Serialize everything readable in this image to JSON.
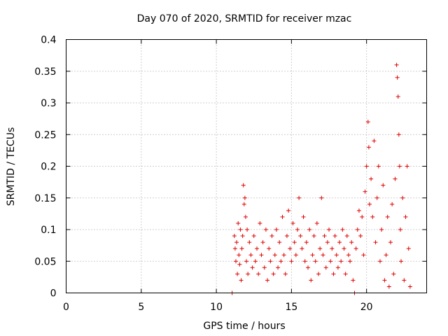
{
  "colors": {
    "series": "#e00000",
    "grid": "#a0a0a0",
    "frame": "#000000"
  },
  "chart_data": {
    "type": "scatter",
    "title": "Day 070 of 2020, SRMTID for receiver mzac",
    "xlabel": "GPS time / hours",
    "ylabel": "SRMTID / TECUs",
    "xlim": [
      0,
      24
    ],
    "ylim": [
      0,
      0.4
    ],
    "grid": true,
    "legend": "none",
    "x_ticks": [
      0,
      5,
      10,
      15,
      20
    ],
    "x_tick_labels": [
      "0",
      "5",
      "10",
      "15",
      "20"
    ],
    "y_ticks": [
      0,
      0.05,
      0.1,
      0.15,
      0.2,
      0.25,
      0.3,
      0.35,
      0.4
    ],
    "y_tick_labels": [
      "0",
      "0.05",
      "0.1",
      "0.15",
      "0.2",
      "0.25",
      "0.3",
      "0.35",
      "0.4"
    ],
    "marker": "plus",
    "series": [
      {
        "name": "SRMTID mzac",
        "color": "#e00000",
        "points": [
          [
            11.05,
            0.0
          ],
          [
            11.2,
            0.09
          ],
          [
            11.25,
            0.07
          ],
          [
            11.3,
            0.05
          ],
          [
            11.35,
            0.08
          ],
          [
            11.4,
            0.03
          ],
          [
            11.45,
            0.11
          ],
          [
            11.5,
            0.06
          ],
          [
            11.55,
            0.045
          ],
          [
            11.6,
            0.1
          ],
          [
            11.65,
            0.02
          ],
          [
            11.7,
            0.07
          ],
          [
            11.75,
            0.09
          ],
          [
            11.8,
            0.17
          ],
          [
            11.85,
            0.14
          ],
          [
            11.9,
            0.15
          ],
          [
            11.95,
            0.12
          ],
          [
            12.0,
            0.05
          ],
          [
            12.05,
            0.1
          ],
          [
            12.1,
            0.03
          ],
          [
            12.2,
            0.08
          ],
          [
            12.3,
            0.06
          ],
          [
            12.4,
            0.04
          ],
          [
            12.5,
            0.09
          ],
          [
            12.6,
            0.05
          ],
          [
            12.7,
            0.07
          ],
          [
            12.8,
            0.03
          ],
          [
            12.9,
            0.11
          ],
          [
            13.0,
            0.06
          ],
          [
            13.1,
            0.08
          ],
          [
            13.2,
            0.04
          ],
          [
            13.3,
            0.1
          ],
          [
            13.4,
            0.02
          ],
          [
            13.5,
            0.07
          ],
          [
            13.6,
            0.05
          ],
          [
            13.7,
            0.09
          ],
          [
            13.8,
            0.03
          ],
          [
            13.9,
            0.06
          ],
          [
            14.0,
            0.1
          ],
          [
            14.1,
            0.04
          ],
          [
            14.2,
            0.08
          ],
          [
            14.3,
            0.05
          ],
          [
            14.4,
            0.12
          ],
          [
            14.5,
            0.06
          ],
          [
            14.6,
            0.03
          ],
          [
            14.7,
            0.09
          ],
          [
            14.8,
            0.13
          ],
          [
            14.9,
            0.07
          ],
          [
            15.0,
            0.05
          ],
          [
            15.1,
            0.11
          ],
          [
            15.2,
            0.08
          ],
          [
            15.3,
            0.06
          ],
          [
            15.4,
            0.1
          ],
          [
            15.5,
            0.15
          ],
          [
            15.6,
            0.09
          ],
          [
            15.7,
            0.07
          ],
          [
            15.8,
            0.12
          ],
          [
            15.9,
            0.05
          ],
          [
            16.0,
            0.08
          ],
          [
            16.1,
            0.04
          ],
          [
            16.2,
            0.1
          ],
          [
            16.3,
            0.02
          ],
          [
            16.4,
            0.06
          ],
          [
            16.5,
            0.09
          ],
          [
            16.6,
            0.05
          ],
          [
            16.7,
            0.11
          ],
          [
            16.8,
            0.03
          ],
          [
            16.9,
            0.07
          ],
          [
            17.0,
            0.15
          ],
          [
            17.1,
            0.06
          ],
          [
            17.2,
            0.09
          ],
          [
            17.3,
            0.04
          ],
          [
            17.4,
            0.08
          ],
          [
            17.5,
            0.1
          ],
          [
            17.6,
            0.05
          ],
          [
            17.7,
            0.07
          ],
          [
            17.8,
            0.03
          ],
          [
            17.9,
            0.09
          ],
          [
            18.0,
            0.06
          ],
          [
            18.1,
            0.04
          ],
          [
            18.2,
            0.08
          ],
          [
            18.3,
            0.05
          ],
          [
            18.4,
            0.1
          ],
          [
            18.5,
            0.07
          ],
          [
            18.6,
            0.03
          ],
          [
            18.7,
            0.09
          ],
          [
            18.8,
            0.06
          ],
          [
            18.9,
            0.05
          ],
          [
            19.0,
            0.08
          ],
          [
            19.1,
            0.02
          ],
          [
            19.2,
            0.0
          ],
          [
            19.3,
            0.07
          ],
          [
            19.4,
            0.1
          ],
          [
            19.5,
            0.13
          ],
          [
            19.6,
            0.09
          ],
          [
            19.7,
            0.12
          ],
          [
            19.8,
            0.06
          ],
          [
            19.9,
            0.16
          ],
          [
            20.0,
            0.2
          ],
          [
            20.1,
            0.27
          ],
          [
            20.15,
            0.23
          ],
          [
            20.2,
            0.14
          ],
          [
            20.3,
            0.18
          ],
          [
            20.4,
            0.12
          ],
          [
            20.5,
            0.24
          ],
          [
            20.6,
            0.08
          ],
          [
            20.7,
            0.15
          ],
          [
            20.8,
            0.2
          ],
          [
            20.9,
            0.05
          ],
          [
            21.0,
            0.1
          ],
          [
            21.1,
            0.17
          ],
          [
            21.2,
            0.02
          ],
          [
            21.3,
            0.06
          ],
          [
            21.4,
            0.12
          ],
          [
            21.5,
            0.01
          ],
          [
            21.6,
            0.08
          ],
          [
            21.7,
            0.14
          ],
          [
            21.8,
            0.03
          ],
          [
            21.9,
            0.18
          ],
          [
            22.0,
            0.36
          ],
          [
            22.05,
            0.34
          ],
          [
            22.1,
            0.31
          ],
          [
            22.15,
            0.25
          ],
          [
            22.2,
            0.2
          ],
          [
            22.25,
            0.1
          ],
          [
            22.3,
            0.05
          ],
          [
            22.4,
            0.15
          ],
          [
            22.5,
            0.02
          ],
          [
            22.6,
            0.12
          ],
          [
            22.7,
            0.2
          ],
          [
            22.8,
            0.07
          ],
          [
            22.9,
            0.01
          ]
        ]
      }
    ]
  }
}
